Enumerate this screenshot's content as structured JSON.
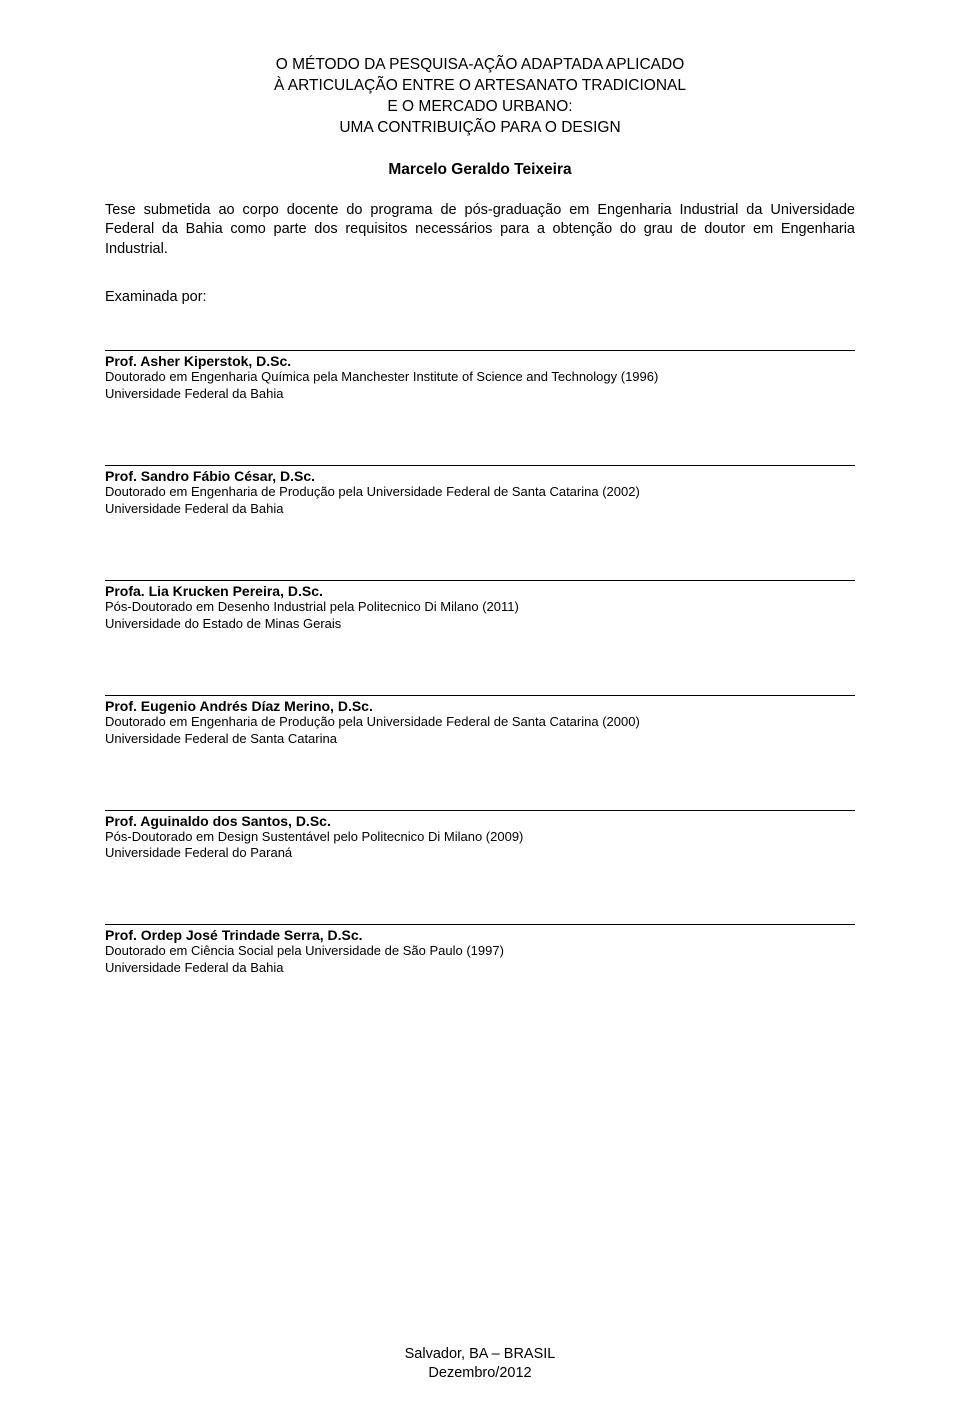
{
  "title": {
    "line1": "O MÉTODO DA PESQUISA-AÇÃO ADAPTADA APLICADO",
    "line2": "À ARTICULAÇÃO ENTRE O ARTESANATO TRADICIONAL",
    "line3": "E O MERCADO URBANO:",
    "line4": "UMA CONTRIBUIÇÃO PARA O DESIGN"
  },
  "author": "Marcelo Geraldo Teixeira",
  "thesis_description": "Tese submetida ao corpo docente do programa de pós-graduação em Engenharia Industrial da Universidade Federal da Bahia como parte dos requisitos necessários para a obtenção do grau de doutor em Engenharia Industrial.",
  "examined_by": "Examinada por:",
  "examiners": [
    {
      "name": "Prof. Asher Kiperstok, D.Sc.",
      "credential": "Doutorado em Engenharia Química pela Manchester Institute of Science and Technology (1996)",
      "affiliation": "Universidade Federal da Bahia"
    },
    {
      "name": "Prof. Sandro Fábio César, D.Sc.",
      "credential": "Doutorado em Engenharia de Produção pela Universidade Federal de Santa Catarina (2002)",
      "affiliation": "Universidade Federal da Bahia"
    },
    {
      "name": "Profa. Lia Krucken Pereira, D.Sc.",
      "credential": "Pós-Doutorado em Desenho Industrial pela Politecnico Di Milano (2011)",
      "affiliation": "Universidade do Estado de Minas Gerais"
    },
    {
      "name": "Prof. Eugenio Andrés Díaz Merino, D.Sc.",
      "credential": "Doutorado em Engenharia de Produção pela Universidade Federal de Santa Catarina (2000)",
      "affiliation": "Universidade Federal de Santa Catarina"
    },
    {
      "name": "Prof. Aguinaldo dos Santos, D.Sc.",
      "credential": "Pós-Doutorado em Design Sustentável pelo Politecnico Di Milano (2009)",
      "affiliation": "Universidade Federal do Paraná"
    },
    {
      "name": "Prof. Ordep José Trindade Serra, D.Sc.",
      "credential": "Doutorado em Ciência Social pela Universidade de São Paulo (1997)",
      "affiliation": "Universidade Federal da Bahia"
    }
  ],
  "footer": {
    "place": "Salvador, BA – BRASIL",
    "date": "Dezembro/2012"
  }
}
